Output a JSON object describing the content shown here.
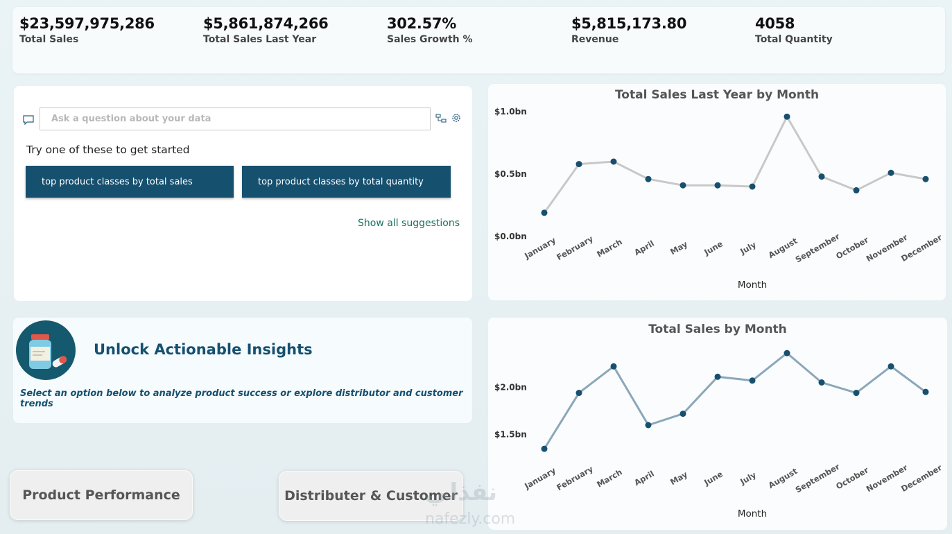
{
  "kpis": [
    {
      "value": "$23,597,975,286",
      "label": "Total Sales"
    },
    {
      "value": "$5,861,874,266",
      "label": "Total Sales Last Year"
    },
    {
      "value": "302.57%",
      "label": "Sales Growth %"
    },
    {
      "value": "$5,815,173.80",
      "label": "Revenue"
    },
    {
      "value": "4058",
      "label": "Total Quantity"
    }
  ],
  "qa": {
    "placeholder": "Ask a question about your data",
    "prompt": "Try one of these to get started",
    "suggestions": [
      "top product classes by total sales",
      "top product classes by total quantity"
    ],
    "show_all": "Show all suggestions",
    "icons": [
      "chat-icon",
      "hierarchy-icon",
      "gear-icon"
    ]
  },
  "insights": {
    "title": "Unlock Actionable Insights",
    "subtitle": "Select an option below to analyze product success or explore distributor and customer trends",
    "logo_icon": "medicine-bottle-icon"
  },
  "nav": {
    "product": "Product Performance",
    "distributor": "Distributer & Customer"
  },
  "watermark": {
    "arabic": "نفذلي",
    "latin": "nafezly.com"
  },
  "colors": {
    "accent": "#16506f",
    "series_last_year": "#c8c8c8",
    "series_current": "#8aa7ba",
    "marker": "#174f6f"
  },
  "chart_data": [
    {
      "type": "line",
      "title": "Total Sales Last Year by Month",
      "xlabel": "Month",
      "ylabel": "",
      "categories": [
        "January",
        "February",
        "March",
        "April",
        "May",
        "June",
        "July",
        "August",
        "September",
        "October",
        "November",
        "December"
      ],
      "values": [
        0.19,
        0.58,
        0.6,
        0.46,
        0.41,
        0.41,
        0.4,
        0.96,
        0.48,
        0.37,
        0.51,
        0.46
      ],
      "value_unit": "bn",
      "ylim": [
        0,
        1.0
      ],
      "yticks": [
        {
          "v": 1.0,
          "label": "$1.0bn"
        },
        {
          "v": 0.5,
          "label": "$0.5bn"
        },
        {
          "v": 0.0,
          "label": "$0.0bn"
        }
      ],
      "grid": false
    },
    {
      "type": "line",
      "title": "Total Sales by Month",
      "xlabel": "Month",
      "ylabel": "",
      "categories": [
        "January",
        "February",
        "March",
        "April",
        "May",
        "June",
        "July",
        "August",
        "September",
        "October",
        "November",
        "December"
      ],
      "values": [
        1.35,
        1.94,
        2.22,
        1.6,
        1.72,
        2.11,
        2.07,
        2.36,
        2.05,
        1.94,
        2.22,
        1.95
      ],
      "value_unit": "bn",
      "ylim": [
        1.3,
        2.5
      ],
      "yticks": [
        {
          "v": 2.0,
          "label": "$2.0bn"
        },
        {
          "v": 1.5,
          "label": "$1.5bn"
        }
      ],
      "grid": false
    }
  ]
}
